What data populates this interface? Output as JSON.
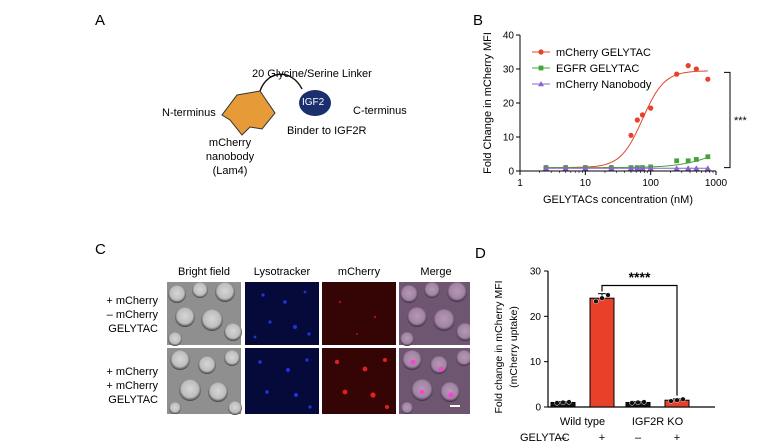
{
  "panels": {
    "A": "A",
    "B": "B",
    "C": "C",
    "D": "D"
  },
  "panel_a": {
    "linker": "20 Glycine/Serine Linker",
    "n_terminus": "N-terminus",
    "c_terminus": "C-terminus",
    "igf2": "IGF2",
    "binder": "Binder to IGF2R",
    "nanobody_line1": "mCherry",
    "nanobody_line2": "nanobody",
    "nanobody_line3": "(Lam4)",
    "colors": {
      "nanobody": "#e69a38",
      "igf2": "#1b2f6e"
    }
  },
  "panel_c": {
    "columns": [
      "Bright field",
      "Lysotracker",
      "mCherry",
      "Merge"
    ],
    "row1": [
      "+ mCherry",
      "– mCherry",
      "GELYTAC"
    ],
    "row2": [
      "+ mCherry",
      "+ mCherry",
      "GELYTAC"
    ]
  },
  "chart_data": [
    {
      "type": "scatter",
      "panel": "B",
      "ylabel": "Fold Change in mCherry MFI",
      "xlabel": "GELYTACs concentration (nM)",
      "xscale": "log",
      "xlim": [
        1,
        1000
      ],
      "ylim": [
        0,
        40
      ],
      "xticks": [
        "1",
        "10",
        "100",
        "1000"
      ],
      "yticks": [
        "0",
        "10",
        "20",
        "30",
        "40"
      ],
      "legend_position": "top-right",
      "annotation": "***",
      "series": [
        {
          "name": "mCherry GELYTAC",
          "color": "#e8412a",
          "marker": "circle",
          "x": [
            2.5,
            5,
            10,
            25,
            50,
            62.5,
            75,
            100,
            250,
            375,
            500,
            750
          ],
          "y": [
            1,
            1,
            1,
            1,
            10.5,
            15,
            16.5,
            18.5,
            28.5,
            31,
            30,
            27
          ]
        },
        {
          "name": "EGFR GELYTAC",
          "color": "#45a33c",
          "marker": "square",
          "x": [
            2.5,
            5,
            10,
            25,
            50,
            62.5,
            75,
            100,
            250,
            375,
            500,
            750
          ],
          "y": [
            1,
            1,
            1,
            1,
            1,
            1,
            1,
            1.2,
            3,
            3,
            3.4,
            4.2
          ]
        },
        {
          "name": "mCherry Nanobody",
          "color": "#8a63d2",
          "marker": "triangle",
          "x": [
            2.5,
            5,
            10,
            25,
            50,
            62.5,
            75,
            100,
            250,
            375,
            500,
            750
          ],
          "y": [
            0.8,
            0.8,
            0.8,
            0.8,
            0.8,
            0.8,
            0.8,
            0.8,
            0.8,
            0.8,
            0.8,
            0.8
          ]
        }
      ]
    },
    {
      "type": "bar",
      "panel": "D",
      "ylabel": "Fold change in mCherry MFI",
      "ylabel2": "(mCherry uptake)",
      "ylim": [
        0,
        30
      ],
      "yticks": [
        "0",
        "10",
        "20",
        "30"
      ],
      "group_labels": [
        "Wild type",
        "IGF2R KO"
      ],
      "row_label": "GELYTAC",
      "signs": [
        "–",
        "+",
        "–",
        "+"
      ],
      "annotation": "****",
      "categories": [
        "Wild type –",
        "Wild type +",
        "IGF2R KO –",
        "IGF2R KO +"
      ],
      "values": [
        1,
        24,
        1,
        1.5
      ],
      "errors": [
        0.2,
        1.0,
        0.2,
        0.3
      ],
      "colors": [
        "#111111",
        "#e8412a",
        "#111111",
        "#e8412a"
      ],
      "points": [
        [
          0.9,
          1.0,
          1.1
        ],
        [
          23.3,
          24.0,
          24.7
        ],
        [
          0.9,
          1.0,
          1.1
        ],
        [
          1.3,
          1.5,
          1.7
        ]
      ]
    }
  ]
}
